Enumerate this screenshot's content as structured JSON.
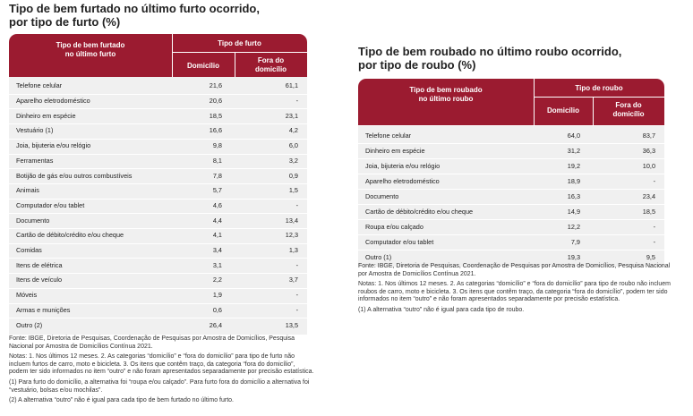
{
  "left": {
    "title": [
      "Tipo de bem furtado no último furto ocorrido,",
      "por tipo de furto (%)"
    ],
    "header": {
      "item": [
        "Tipo de bem furtado",
        "no último furto"
      ],
      "group": "Tipo de furto",
      "cols": [
        "Domicílio",
        [
          "Fora do",
          "domicílio"
        ]
      ]
    },
    "rows": [
      [
        "Telefone celular",
        "21,6",
        "61,1"
      ],
      [
        "Aparelho eletrodoméstico",
        "20,6",
        "-"
      ],
      [
        "Dinheiro em espécie",
        "18,5",
        "23,1"
      ],
      [
        "Vestuário (1)",
        "16,6",
        "4,2"
      ],
      [
        "Joia, bijuteria e/ou relógio",
        "9,8",
        "6,0"
      ],
      [
        "Ferramentas",
        "8,1",
        "3,2"
      ],
      [
        "Botijão de gás e/ou outros combustíveis",
        "7,8",
        "0,9"
      ],
      [
        "Animais",
        "5,7",
        "1,5"
      ],
      [
        "Computador e/ou tablet",
        "4,6",
        "-"
      ],
      [
        "Documento",
        "4,4",
        "13,4"
      ],
      [
        "Cartão de débito/crédito e/ou cheque",
        "4,1",
        "12,3"
      ],
      [
        "Comidas",
        "3,4",
        "1,3"
      ],
      [
        "Itens de elétrica",
        "3,1",
        "-"
      ],
      [
        "Itens de veículo",
        "2,2",
        "3,7"
      ],
      [
        "Móveis",
        "1,9",
        "-"
      ],
      [
        "Armas e munições",
        "0,6",
        "-"
      ],
      [
        "Outro (2)",
        "26,4",
        "13,5"
      ]
    ],
    "notes": [
      "Fonte: IBGE, Diretoria de Pesquisas, Coordenação de Pesquisas por Amostra de Domicílios, Pesquisa Nacional por Amostra de Domicílios Contínua 2021.",
      "Notas: 1. Nos últimos 12 meses. 2. As categorias “domicílio” e “fora do domicílio” para tipo de furto não incluem furtos de carro, moto e bicicleta. 3. Os itens que contêm traço, da categoria “fora do domicílio”, podem ter sido informados no item “outro” e não foram apresentados separadamente por precisão estatística.",
      "(1) Para furto do domicílio, a alternativa foi “roupa e/ou calçado”. Para furto fora do domicílio a alternativa foi “vestuário, bolsas e/ou mochilas”.",
      "(2) A alternativa “outro” não é igual para cada tipo de bem furtado no último furto."
    ]
  },
  "right": {
    "title": [
      "Tipo de bem roubado no último roubo ocorrido,",
      "por tipo de roubo (%)"
    ],
    "header": {
      "item": [
        "Tipo de bem roubado",
        "no último roubo"
      ],
      "group": "Tipo de roubo",
      "cols": [
        "Domicílio",
        [
          "Fora do",
          "domicílio"
        ]
      ]
    },
    "rows": [
      [
        "Telefone celular",
        "64,0",
        "83,7"
      ],
      [
        "Dinheiro em espécie",
        "31,2",
        "36,3"
      ],
      [
        "Joia, bijuteria e/ou relógio",
        "19,2",
        "10,0"
      ],
      [
        "Aparelho eletrodoméstico",
        "18,9",
        "-"
      ],
      [
        "Documento",
        "16,3",
        "23,4"
      ],
      [
        "Cartão de débito/crédito e/ou cheque",
        "14,9",
        "18,5"
      ],
      [
        "Roupa e/ou calçado",
        "12,2",
        "-"
      ],
      [
        "Computador e/ou tablet",
        "7,9",
        "-"
      ],
      [
        "Outro (1)",
        "19,3",
        "9,5"
      ]
    ],
    "notes": [
      "Fonte: IBGE, Diretoria de Pesquisas, Coordenação de Pesquisas por Amostra de Domicílios, Pesquisa Nacional por Amostra de Domicílios Contínua 2021.",
      "Notas: 1. Nos últimos 12 meses. 2. As categorias “domicílio” e “fora do domicílio” para tipo de roubo não incluem roubos de carro, moto e bicicleta. 3. Os itens que contêm traço, da categoria “fora do domicílio”, podem ter sido informados no item “outro” e não foram apresentados separadamente por precisão estatística.",
      "(1) A alternativa “outro” não é igual para cada tipo de roubo."
    ]
  }
}
